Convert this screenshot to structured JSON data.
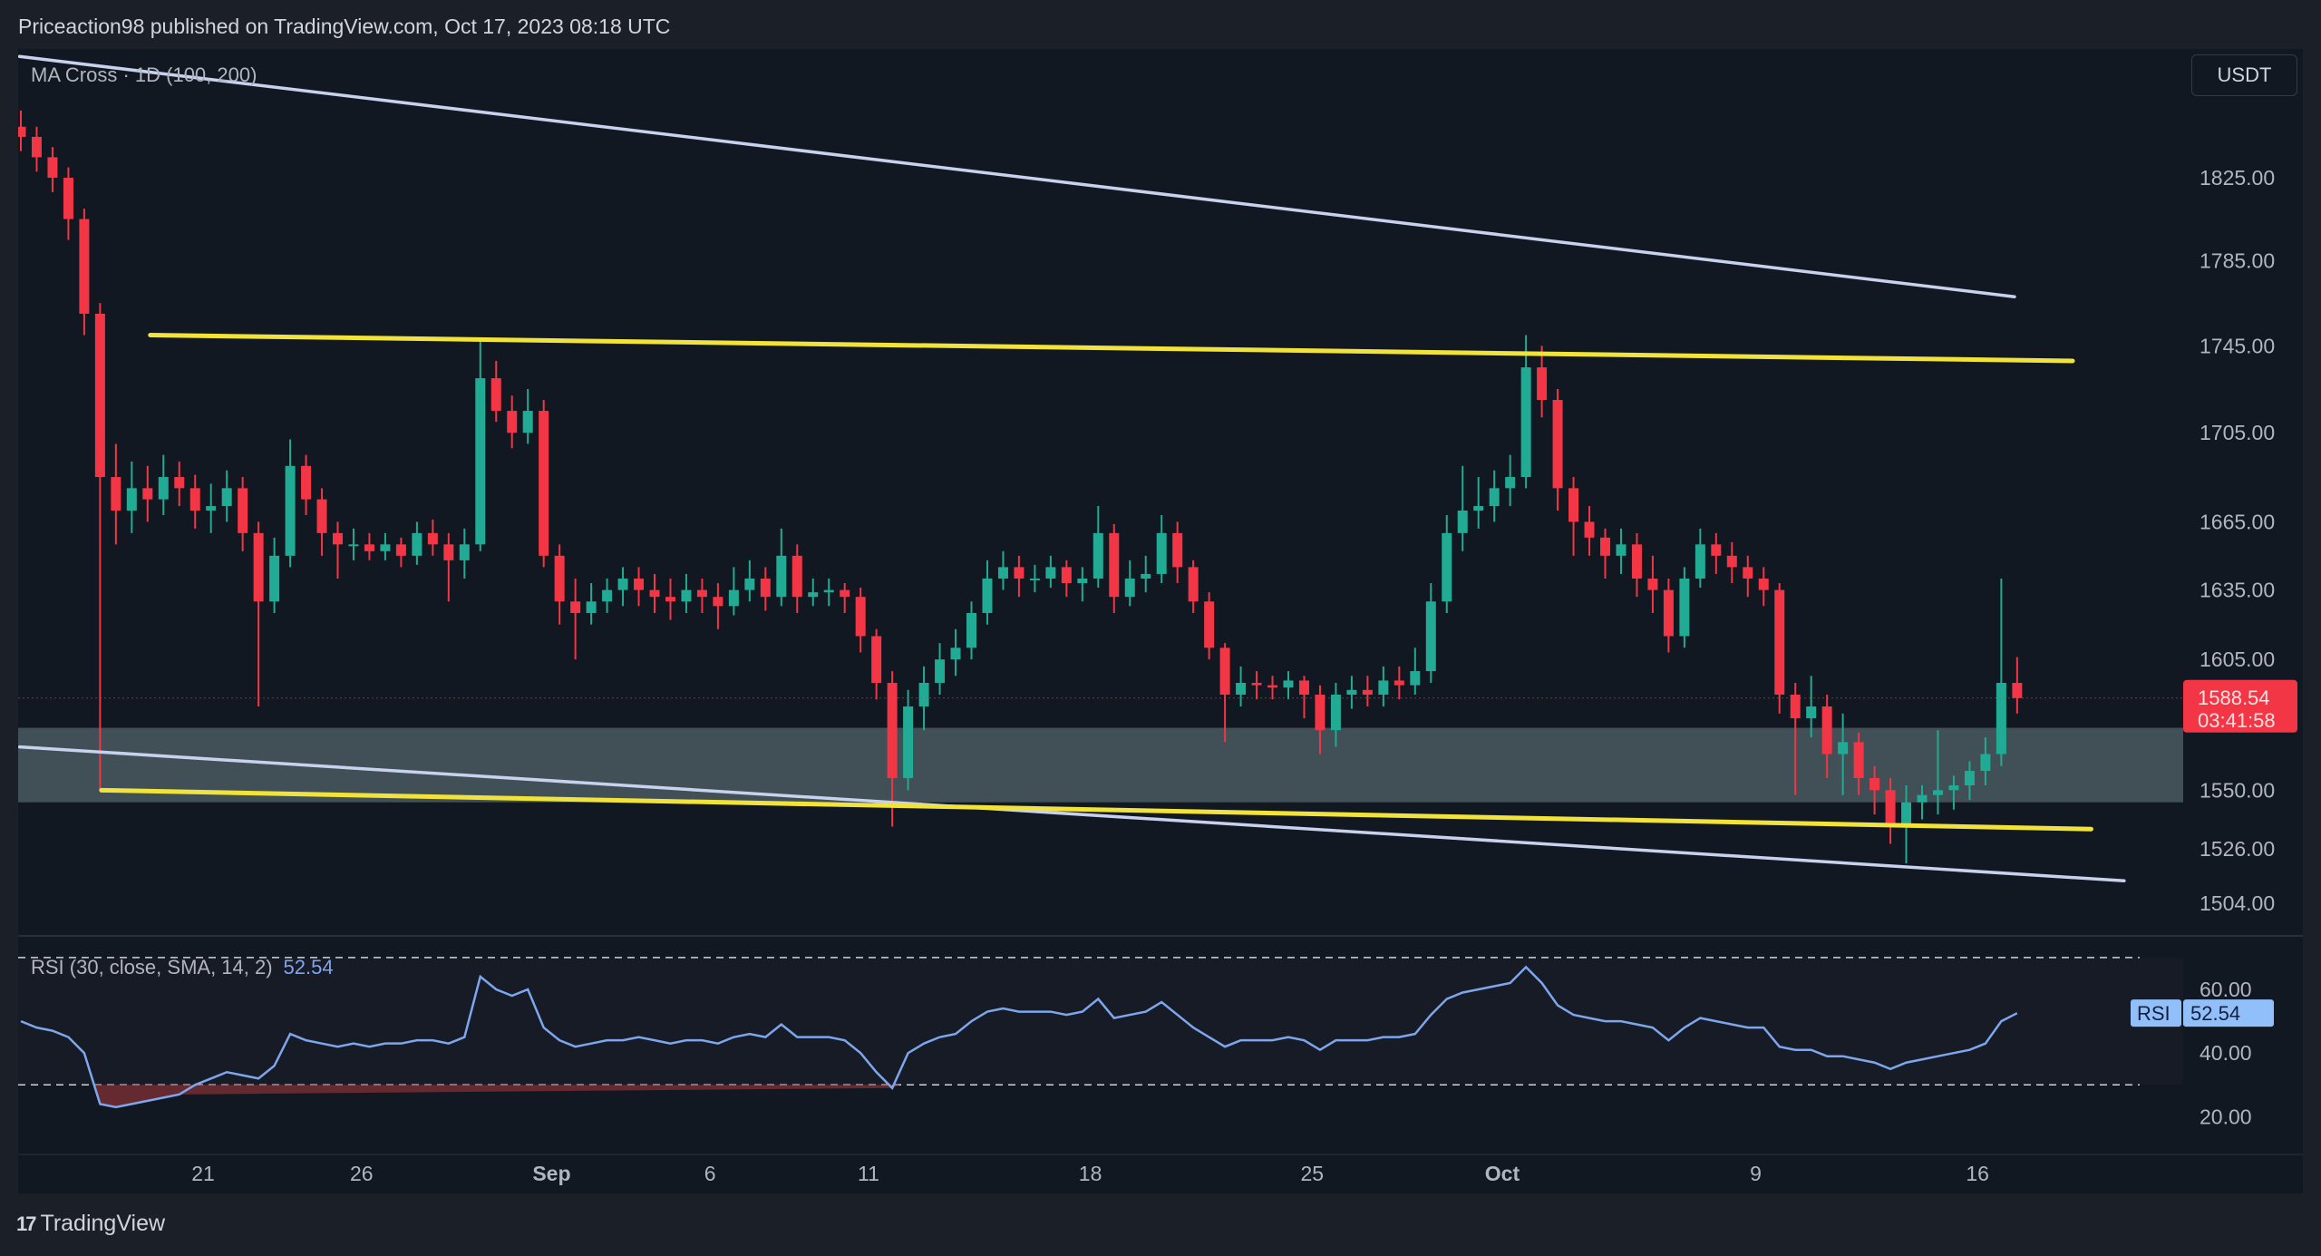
{
  "header": {
    "published": "Priceaction98 published on TradingView.com, Oct 17, 2023 08:18 UTC"
  },
  "legend": {
    "ma_cross": "MA Cross · 1D (100, 200)"
  },
  "currency_button": "USDT",
  "rsi_legend": {
    "label": "RSI (30, close, SMA, 14, 2)",
    "value": "52.54"
  },
  "footer": {
    "brand": "TradingView",
    "logo_icon": "tradingview-logo-icon"
  },
  "colors": {
    "up": "#22ab94",
    "down": "#f23645",
    "zone": "#44535a",
    "yellow_line": "#f2e33a",
    "white_line": "#c8d2ee",
    "rsi_line": "#7ea6ec",
    "background": "#121821"
  },
  "chart_data": [
    {
      "type": "candlestick",
      "price_scale": "log",
      "price_axis_labels": [
        1825,
        1785,
        1745,
        1705,
        1665,
        1635,
        1605,
        1550,
        1526,
        1504
      ],
      "last_price": {
        "value": "1588.54",
        "countdown": "03:41:58"
      },
      "x_axis_labels": [
        {
          "label": "21",
          "date": "2023-08-21"
        },
        {
          "label": "26",
          "date": "2023-08-26"
        },
        {
          "label": "Sep",
          "date": "2023-09-01",
          "bold": true
        },
        {
          "label": "6",
          "date": "2023-09-06"
        },
        {
          "label": "11",
          "date": "2023-09-11"
        },
        {
          "label": "18",
          "date": "2023-09-18"
        },
        {
          "label": "25",
          "date": "2023-09-25"
        },
        {
          "label": "Oct",
          "date": "2023-10-01",
          "bold": true
        },
        {
          "label": "9",
          "date": "2023-10-09"
        },
        {
          "label": "16",
          "date": "2023-10-16"
        }
      ],
      "support_zone": {
        "from": 1545,
        "to": 1576
      },
      "trendlines": [
        {
          "color": "white",
          "from": [
            "2023-08-15 05:00",
            1885
          ],
          "to": [
            "2023-10-17 04:00",
            1768
          ]
        },
        {
          "color": "white",
          "from": [
            "2023-08-15 05:00",
            1568
          ],
          "to": [
            "2023-10-20 15:00",
            1513
          ]
        },
        {
          "color": "yellow",
          "from": [
            "2023-08-19 08:00",
            1750
          ],
          "to": [
            "2023-10-19 00:00",
            1738
          ]
        },
        {
          "color": "yellow",
          "from": [
            "2023-08-17 19:00",
            1550
          ],
          "to": [
            "2023-10-19 14:00",
            1534
          ]
        }
      ],
      "candles_ohlc": [
        [
          "2023-08-15 00:00",
          1850,
          1858,
          1838,
          1845
        ],
        [
          "2023-08-15 12:00",
          1845,
          1850,
          1828,
          1835
        ],
        [
          "2023-08-16 00:00",
          1835,
          1840,
          1818,
          1825
        ],
        [
          "2023-08-16 12:00",
          1825,
          1830,
          1795,
          1805
        ],
        [
          "2023-08-17 00:00",
          1805,
          1810,
          1750,
          1760
        ],
        [
          "2023-08-17 12:00",
          1760,
          1765,
          1550,
          1685
        ],
        [
          "2023-08-18 00:00",
          1685,
          1700,
          1655,
          1670
        ],
        [
          "2023-08-18 12:00",
          1670,
          1692,
          1660,
          1680
        ],
        [
          "2023-08-19 00:00",
          1680,
          1690,
          1665,
          1675
        ],
        [
          "2023-08-19 12:00",
          1675,
          1695,
          1668,
          1685
        ],
        [
          "2023-08-20 00:00",
          1685,
          1692,
          1672,
          1680
        ],
        [
          "2023-08-20 12:00",
          1680,
          1686,
          1662,
          1670
        ],
        [
          "2023-08-21 00:00",
          1670,
          1682,
          1660,
          1672
        ],
        [
          "2023-08-21 12:00",
          1672,
          1688,
          1665,
          1680
        ],
        [
          "2023-08-22 00:00",
          1680,
          1685,
          1652,
          1660
        ],
        [
          "2023-08-22 12:00",
          1660,
          1665,
          1585,
          1630
        ],
        [
          "2023-08-23 00:00",
          1630,
          1658,
          1625,
          1650
        ],
        [
          "2023-08-23 12:00",
          1650,
          1702,
          1645,
          1690
        ],
        [
          "2023-08-24 00:00",
          1690,
          1695,
          1668,
          1675
        ],
        [
          "2023-08-24 12:00",
          1675,
          1680,
          1650,
          1660
        ],
        [
          "2023-08-25 00:00",
          1660,
          1665,
          1640,
          1655
        ],
        [
          "2023-08-25 12:00",
          1655,
          1662,
          1648,
          1655
        ],
        [
          "2023-08-26 00:00",
          1655,
          1660,
          1648,
          1652
        ],
        [
          "2023-08-26 12:00",
          1652,
          1660,
          1648,
          1655
        ],
        [
          "2023-08-27 00:00",
          1655,
          1658,
          1645,
          1650
        ],
        [
          "2023-08-27 12:00",
          1650,
          1665,
          1646,
          1660
        ],
        [
          "2023-08-28 00:00",
          1660,
          1666,
          1650,
          1655
        ],
        [
          "2023-08-28 12:00",
          1655,
          1660,
          1630,
          1648
        ],
        [
          "2023-08-29 00:00",
          1648,
          1662,
          1640,
          1655
        ],
        [
          "2023-08-29 12:00",
          1655,
          1748,
          1652,
          1730
        ],
        [
          "2023-08-30 00:00",
          1730,
          1738,
          1710,
          1715
        ],
        [
          "2023-08-30 12:00",
          1715,
          1722,
          1698,
          1705
        ],
        [
          "2023-08-31 00:00",
          1705,
          1725,
          1700,
          1715
        ],
        [
          "2023-08-31 12:00",
          1715,
          1720,
          1645,
          1650
        ],
        [
          "2023-09-01 00:00",
          1650,
          1655,
          1620,
          1630
        ],
        [
          "2023-09-01 12:00",
          1630,
          1640,
          1605,
          1625
        ],
        [
          "2023-09-02 00:00",
          1625,
          1638,
          1620,
          1630
        ],
        [
          "2023-09-02 12:00",
          1630,
          1640,
          1625,
          1635
        ],
        [
          "2023-09-03 00:00",
          1635,
          1645,
          1628,
          1640
        ],
        [
          "2023-09-03 12:00",
          1640,
          1645,
          1628,
          1635
        ],
        [
          "2023-09-04 00:00",
          1635,
          1642,
          1625,
          1632
        ],
        [
          "2023-09-04 12:00",
          1632,
          1640,
          1622,
          1630
        ],
        [
          "2023-09-05 00:00",
          1630,
          1642,
          1625,
          1635
        ],
        [
          "2023-09-05 12:00",
          1635,
          1640,
          1625,
          1632
        ],
        [
          "2023-09-06 00:00",
          1632,
          1638,
          1618,
          1628
        ],
        [
          "2023-09-06 12:00",
          1628,
          1645,
          1624,
          1635
        ],
        [
          "2023-09-07 00:00",
          1635,
          1648,
          1630,
          1640
        ],
        [
          "2023-09-07 12:00",
          1640,
          1645,
          1626,
          1632
        ],
        [
          "2023-09-08 00:00",
          1632,
          1662,
          1628,
          1650
        ],
        [
          "2023-09-08 12:00",
          1650,
          1655,
          1625,
          1632
        ],
        [
          "2023-09-09 00:00",
          1632,
          1640,
          1628,
          1634
        ],
        [
          "2023-09-09 12:00",
          1634,
          1640,
          1628,
          1635
        ],
        [
          "2023-09-10 00:00",
          1635,
          1638,
          1625,
          1632
        ],
        [
          "2023-09-10 12:00",
          1632,
          1636,
          1608,
          1615
        ],
        [
          "2023-09-11 00:00",
          1615,
          1618,
          1588,
          1595
        ],
        [
          "2023-09-11 12:00",
          1595,
          1600,
          1535,
          1555
        ],
        [
          "2023-09-12 00:00",
          1555,
          1592,
          1550,
          1585
        ],
        [
          "2023-09-12 12:00",
          1585,
          1602,
          1575,
          1595
        ],
        [
          "2023-09-13 00:00",
          1595,
          1612,
          1590,
          1605
        ],
        [
          "2023-09-13 12:00",
          1605,
          1618,
          1598,
          1610
        ],
        [
          "2023-09-14 00:00",
          1610,
          1630,
          1605,
          1625
        ],
        [
          "2023-09-14 12:00",
          1625,
          1648,
          1620,
          1640
        ],
        [
          "2023-09-15 00:00",
          1640,
          1652,
          1635,
          1645
        ],
        [
          "2023-09-15 12:00",
          1645,
          1650,
          1632,
          1640
        ],
        [
          "2023-09-16 00:00",
          1640,
          1646,
          1634,
          1640
        ],
        [
          "2023-09-16 12:00",
          1640,
          1650,
          1636,
          1645
        ],
        [
          "2023-09-17 00:00",
          1645,
          1648,
          1632,
          1638
        ],
        [
          "2023-09-17 12:00",
          1638,
          1645,
          1630,
          1640
        ],
        [
          "2023-09-18 00:00",
          1640,
          1672,
          1636,
          1660
        ],
        [
          "2023-09-18 12:00",
          1660,
          1664,
          1625,
          1632
        ],
        [
          "2023-09-19 00:00",
          1632,
          1648,
          1628,
          1640
        ],
        [
          "2023-09-19 12:00",
          1640,
          1650,
          1634,
          1642
        ],
        [
          "2023-09-20 00:00",
          1642,
          1668,
          1638,
          1660
        ],
        [
          "2023-09-20 12:00",
          1660,
          1665,
          1638,
          1645
        ],
        [
          "2023-09-21 00:00",
          1645,
          1648,
          1625,
          1630
        ],
        [
          "2023-09-21 12:00",
          1630,
          1634,
          1605,
          1610
        ],
        [
          "2023-09-22 00:00",
          1610,
          1612,
          1570,
          1590
        ],
        [
          "2023-09-22 12:00",
          1590,
          1602,
          1585,
          1595
        ],
        [
          "2023-09-23 00:00",
          1595,
          1600,
          1588,
          1594
        ],
        [
          "2023-09-23 12:00",
          1594,
          1598,
          1588,
          1593
        ],
        [
          "2023-09-24 00:00",
          1593,
          1600,
          1588,
          1596
        ],
        [
          "2023-09-24 12:00",
          1596,
          1598,
          1580,
          1590
        ],
        [
          "2023-09-25 00:00",
          1590,
          1594,
          1565,
          1575
        ],
        [
          "2023-09-25 12:00",
          1575,
          1595,
          1568,
          1590
        ],
        [
          "2023-09-26 00:00",
          1590,
          1598,
          1584,
          1592
        ],
        [
          "2023-09-26 12:00",
          1592,
          1598,
          1585,
          1590
        ],
        [
          "2023-09-27 00:00",
          1590,
          1602,
          1585,
          1596
        ],
        [
          "2023-09-27 12:00",
          1596,
          1602,
          1588,
          1594
        ],
        [
          "2023-09-28 00:00",
          1594,
          1610,
          1590,
          1600
        ],
        [
          "2023-09-28 12:00",
          1600,
          1638,
          1595,
          1630
        ],
        [
          "2023-09-29 00:00",
          1630,
          1668,
          1625,
          1660
        ],
        [
          "2023-09-29 12:00",
          1660,
          1690,
          1652,
          1670
        ],
        [
          "2023-09-30 00:00",
          1670,
          1685,
          1662,
          1672
        ],
        [
          "2023-09-30 12:00",
          1672,
          1688,
          1665,
          1680
        ],
        [
          "2023-10-01 00:00",
          1680,
          1695,
          1672,
          1685
        ],
        [
          "2023-10-01 12:00",
          1685,
          1750,
          1680,
          1735
        ],
        [
          "2023-10-02 00:00",
          1735,
          1745,
          1712,
          1720
        ],
        [
          "2023-10-02 12:00",
          1720,
          1725,
          1670,
          1680
        ],
        [
          "2023-10-03 00:00",
          1680,
          1685,
          1650,
          1665
        ],
        [
          "2023-10-03 12:00",
          1665,
          1672,
          1650,
          1658
        ],
        [
          "2023-10-04 00:00",
          1658,
          1662,
          1640,
          1650
        ],
        [
          "2023-10-04 12:00",
          1650,
          1662,
          1642,
          1655
        ],
        [
          "2023-10-05 00:00",
          1655,
          1660,
          1632,
          1640
        ],
        [
          "2023-10-05 12:00",
          1640,
          1650,
          1625,
          1635
        ],
        [
          "2023-10-06 00:00",
          1635,
          1640,
          1608,
          1615
        ],
        [
          "2023-10-06 12:00",
          1615,
          1645,
          1610,
          1640
        ],
        [
          "2023-10-07 00:00",
          1640,
          1662,
          1636,
          1655
        ],
        [
          "2023-10-07 12:00",
          1655,
          1660,
          1642,
          1650
        ],
        [
          "2023-10-08 00:00",
          1650,
          1656,
          1638,
          1645
        ],
        [
          "2023-10-08 12:00",
          1645,
          1650,
          1632,
          1640
        ],
        [
          "2023-10-09 00:00",
          1640,
          1645,
          1628,
          1635
        ],
        [
          "2023-10-09 12:00",
          1635,
          1638,
          1582,
          1590
        ],
        [
          "2023-10-10 00:00",
          1590,
          1595,
          1548,
          1580
        ],
        [
          "2023-10-10 12:00",
          1580,
          1598,
          1572,
          1585
        ],
        [
          "2023-10-11 00:00",
          1585,
          1590,
          1555,
          1565
        ],
        [
          "2023-10-11 12:00",
          1565,
          1582,
          1548,
          1570
        ],
        [
          "2023-10-12 00:00",
          1570,
          1574,
          1548,
          1555
        ],
        [
          "2023-10-12 12:00",
          1555,
          1560,
          1540,
          1550
        ],
        [
          "2023-10-13 00:00",
          1550,
          1555,
          1528,
          1535
        ],
        [
          "2023-10-13 12:00",
          1535,
          1552,
          1520,
          1545
        ],
        [
          "2023-10-14 00:00",
          1545,
          1552,
          1538,
          1548
        ],
        [
          "2023-10-14 12:00",
          1548,
          1575,
          1540,
          1550
        ],
        [
          "2023-10-15 00:00",
          1550,
          1556,
          1542,
          1552
        ],
        [
          "2023-10-15 12:00",
          1552,
          1562,
          1546,
          1558
        ],
        [
          "2023-10-16 00:00",
          1558,
          1572,
          1552,
          1565
        ],
        [
          "2023-10-16 12:00",
          1565,
          1640,
          1560,
          1595
        ],
        [
          "2023-10-17 00:00",
          1595,
          1606,
          1582,
          1588.54
        ]
      ]
    },
    {
      "type": "line",
      "name": "RSI (30, close, SMA, 14, 2)",
      "y_axis_labels": [
        60,
        40,
        20
      ],
      "bands": {
        "upper": 70,
        "lower": 30
      },
      "values": [
        50,
        48,
        47,
        45,
        40,
        24,
        23,
        24,
        25,
        26,
        27,
        30,
        32,
        34,
        33,
        32,
        36,
        46,
        44,
        43,
        42,
        43,
        42,
        43,
        43,
        44,
        44,
        43,
        45,
        64,
        60,
        58,
        60,
        48,
        44,
        42,
        43,
        44,
        44,
        45,
        44,
        43,
        44,
        44,
        43,
        45,
        46,
        45,
        49,
        45,
        45,
        45,
        44,
        40,
        34,
        29,
        40,
        43,
        45,
        46,
        50,
        53,
        54,
        53,
        53,
        53,
        52,
        53,
        57,
        51,
        52,
        53,
        56,
        52,
        48,
        45,
        42,
        44,
        44,
        44,
        45,
        44,
        41,
        44,
        44,
        44,
        45,
        45,
        46,
        52,
        57,
        59,
        60,
        61,
        62,
        67,
        62,
        55,
        52,
        51,
        50,
        50,
        49,
        48,
        44,
        48,
        51,
        50,
        49,
        48,
        48,
        42,
        41,
        41,
        39,
        39,
        38,
        37,
        35,
        37,
        38,
        39,
        40,
        41,
        43,
        50,
        52.54
      ]
    }
  ]
}
